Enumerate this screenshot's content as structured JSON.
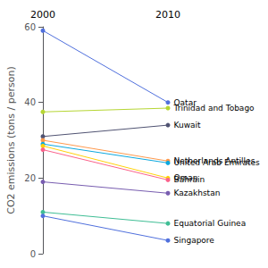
{
  "chart_data": {
    "type": "line",
    "categories": [
      "2000",
      "2010"
    ],
    "series": [
      {
        "name": "Qatar",
        "values": [
          59.0,
          40.0
        ]
      },
      {
        "name": "Trinidad and Tobago",
        "values": [
          37.5,
          38.5
        ]
      },
      {
        "name": "Kuwait",
        "values": [
          31.0,
          34.0
        ]
      },
      {
        "name": "Netherlands Antilles",
        "values": [
          30.0,
          24.5
        ]
      },
      {
        "name": "United Arab Emirates",
        "values": [
          29.0,
          24.0
        ]
      },
      {
        "name": "Oman",
        "values": [
          28.5,
          20.0
        ]
      },
      {
        "name": "Bahrain",
        "values": [
          27.5,
          19.5
        ]
      },
      {
        "name": "Kazakhstan",
        "values": [
          19.0,
          16.0
        ]
      },
      {
        "name": "Equatorial Guinea",
        "values": [
          11.0,
          8.0
        ]
      },
      {
        "name": "Singapore",
        "values": [
          10.0,
          3.5
        ]
      }
    ],
    "ylabel": "CO2 emissions (tons / person)",
    "ylim": [
      0,
      60
    ],
    "yticks": [
      0,
      20,
      40,
      60
    ],
    "grid": false
  }
}
